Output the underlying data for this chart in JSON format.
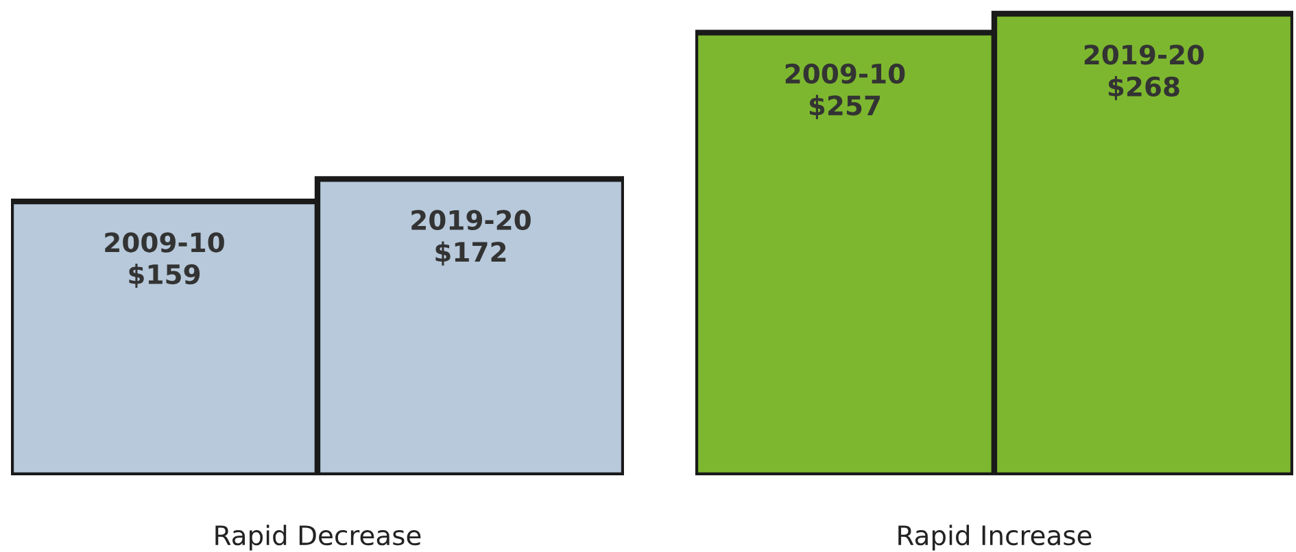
{
  "chart_data": [
    {
      "type": "bar",
      "xlabel": "Rapid Decrease",
      "categories": [
        "2009-10",
        "2019-20"
      ],
      "values": [
        159,
        172
      ],
      "value_labels": [
        "$159",
        "$172"
      ],
      "colors": [
        "#b7c9da",
        "#b7c9da"
      ]
    },
    {
      "type": "bar",
      "xlabel": "Rapid Increase",
      "categories": [
        "2009-10",
        "2019-20"
      ],
      "values": [
        257,
        268
      ],
      "value_labels": [
        "$257",
        "$268"
      ],
      "colors": [
        "#7db72f",
        "#7db72f"
      ]
    }
  ]
}
